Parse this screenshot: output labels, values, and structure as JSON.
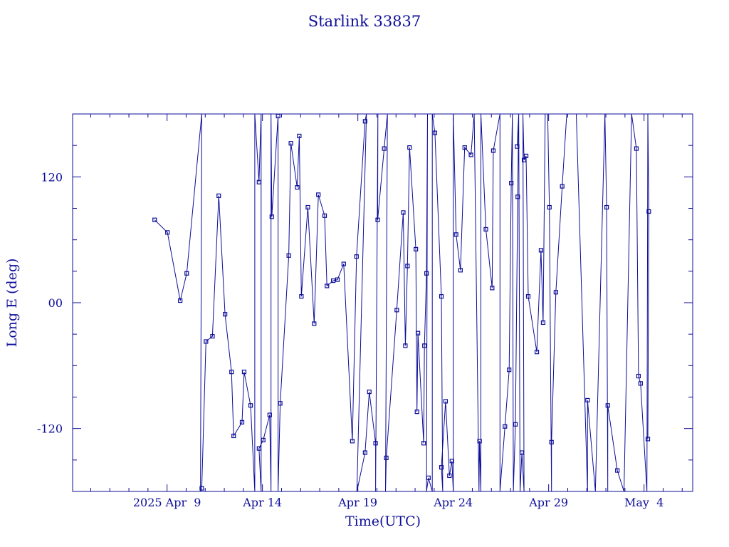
{
  "colors": {
    "ink": "#0d0d99",
    "background": "#ffffff"
  },
  "chart_data": {
    "type": "line",
    "title": "Starlink 33837",
    "xlabel": "Time(UTC)",
    "ylabel": "Long E (deg)",
    "x_unit": "days since 2025-04-05 00:00 UTC",
    "xlim": [
      0,
      32.5
    ],
    "ylim": [
      -180,
      180
    ],
    "x_ticks": [
      {
        "x": 4.95,
        "label": "2025 Apr  9"
      },
      {
        "x": 9.95,
        "label": "Apr 14"
      },
      {
        "x": 14.95,
        "label": "Apr 19"
      },
      {
        "x": 19.95,
        "label": "Apr 24"
      },
      {
        "x": 24.95,
        "label": "Apr 29"
      },
      {
        "x": 29.95,
        "label": "May  4"
      }
    ],
    "y_ticks": [
      {
        "y": 120,
        "label": "120"
      },
      {
        "y": 0,
        "label": "00"
      },
      {
        "y": -120,
        "label": "-120"
      }
    ],
    "markers": "small squares",
    "series": [
      {
        "name": "",
        "points": [
          [
            4.3,
            79
          ],
          [
            4.97,
            67
          ],
          [
            5.64,
            2
          ],
          [
            5.98,
            28
          ],
          [
            6.77,
            180
          ],
          [
            6.7,
            -180
          ],
          [
            6.77,
            -177
          ],
          [
            6.99,
            -37
          ],
          [
            7.33,
            -32
          ],
          [
            7.66,
            102
          ],
          [
            7.99,
            -11
          ],
          [
            8.33,
            -66
          ],
          [
            8.44,
            -127
          ],
          [
            8.88,
            -114
          ],
          [
            8.99,
            -66
          ],
          [
            9.33,
            -98
          ],
          [
            9.55,
            -180
          ],
          [
            9.55,
            180
          ],
          [
            9.77,
            115
          ],
          [
            9.88,
            180
          ],
          [
            9.88,
            -180
          ],
          [
            9.77,
            -139
          ],
          [
            9.99,
            -131
          ],
          [
            10.33,
            -107
          ],
          [
            10.4,
            -180
          ],
          [
            10.4,
            180
          ],
          [
            10.44,
            82
          ],
          [
            10.77,
            178
          ],
          [
            10.77,
            -180
          ],
          [
            10.88,
            -96
          ],
          [
            11.33,
            45
          ],
          [
            11.44,
            152
          ],
          [
            11.77,
            110
          ],
          [
            11.88,
            159
          ],
          [
            11.99,
            6
          ],
          [
            12.33,
            91
          ],
          [
            12.66,
            -20
          ],
          [
            12.88,
            103
          ],
          [
            13.21,
            83
          ],
          [
            13.33,
            16
          ],
          [
            13.66,
            21
          ],
          [
            13.88,
            22
          ],
          [
            14.21,
            37
          ],
          [
            14.66,
            -132
          ],
          [
            14.88,
            44
          ],
          [
            15.33,
            173
          ],
          [
            15.4,
            180
          ],
          [
            14.9,
            -180
          ],
          [
            15.33,
            -143
          ],
          [
            15.55,
            -85
          ],
          [
            15.88,
            -134
          ],
          [
            15.88,
            -180
          ],
          [
            16.0,
            180
          ],
          [
            15.99,
            79
          ],
          [
            16.33,
            147
          ],
          [
            16.5,
            180
          ],
          [
            16.4,
            -180
          ],
          [
            16.44,
            -148
          ],
          [
            16.99,
            -7
          ],
          [
            17.33,
            86
          ],
          [
            17.44,
            -41
          ],
          [
            17.55,
            35
          ],
          [
            17.66,
            148
          ],
          [
            17.99,
            51
          ],
          [
            18.05,
            -104
          ],
          [
            18.1,
            -29
          ],
          [
            18.4,
            -134
          ],
          [
            18.44,
            -41
          ],
          [
            18.55,
            28
          ],
          [
            18.6,
            180
          ],
          [
            18.55,
            -180
          ],
          [
            18.65,
            -167
          ],
          [
            18.85,
            -180
          ],
          [
            18.85,
            180
          ],
          [
            18.99,
            162
          ],
          [
            19.33,
            6
          ],
          [
            19.4,
            -180
          ],
          [
            19.33,
            -157
          ],
          [
            19.55,
            -94
          ],
          [
            19.75,
            -165
          ],
          [
            19.88,
            -151
          ],
          [
            19.95,
            -180
          ],
          [
            19.95,
            180
          ],
          [
            20.1,
            65
          ],
          [
            20.33,
            31
          ],
          [
            20.55,
            148
          ],
          [
            20.88,
            141
          ],
          [
            21.05,
            180
          ],
          [
            21.3,
            -180
          ],
          [
            21.33,
            -132
          ],
          [
            21.4,
            -180
          ],
          [
            21.4,
            180
          ],
          [
            21.66,
            70
          ],
          [
            21.99,
            14
          ],
          [
            22.05,
            145
          ],
          [
            22.4,
            180
          ],
          [
            22.4,
            -180
          ],
          [
            22.66,
            -118
          ],
          [
            22.88,
            -64
          ],
          [
            22.99,
            114
          ],
          [
            23.05,
            180
          ],
          [
            23.1,
            -180
          ],
          [
            23.21,
            -116
          ],
          [
            23.33,
            101
          ],
          [
            23.38,
            180
          ],
          [
            23.3,
            149
          ],
          [
            23.38,
            180
          ],
          [
            23.45,
            -180
          ],
          [
            23.55,
            -143
          ],
          [
            23.66,
            -180
          ],
          [
            23.6,
            180
          ],
          [
            23.66,
            136
          ],
          [
            23.77,
            140
          ],
          [
            23.88,
            6
          ],
          [
            24.33,
            -47
          ],
          [
            24.55,
            50
          ],
          [
            24.66,
            -19
          ],
          [
            24.77,
            180
          ],
          [
            24.9,
            180
          ],
          [
            24.99,
            91
          ],
          [
            25.1,
            -180
          ],
          [
            25.1,
            -133
          ],
          [
            25.33,
            10
          ],
          [
            25.66,
            111
          ],
          [
            25.9,
            180
          ],
          [
            26.4,
            180
          ],
          [
            26.99,
            -180
          ],
          [
            26.99,
            -93
          ],
          [
            27.4,
            -180
          ],
          [
            27.9,
            180
          ],
          [
            27.99,
            91
          ],
          [
            28.05,
            -180
          ],
          [
            28.05,
            -98
          ],
          [
            28.55,
            -160
          ],
          [
            28.9,
            -180
          ],
          [
            29.3,
            180
          ],
          [
            29.55,
            147
          ],
          [
            29.66,
            -70
          ],
          [
            29.77,
            -77
          ],
          [
            30.1,
            -180
          ],
          [
            30.15,
            180
          ],
          [
            30.2,
            87
          ],
          [
            30.15,
            -130
          ]
        ]
      }
    ]
  }
}
